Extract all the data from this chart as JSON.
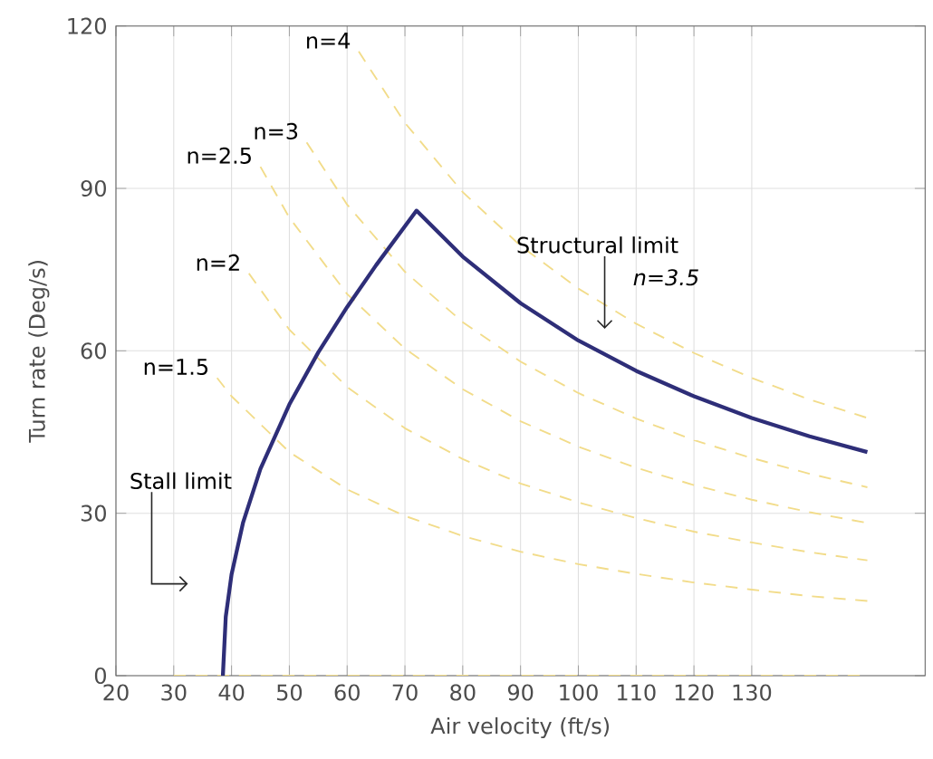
{
  "chart_data": {
    "type": "line",
    "xlabel": "Air velocity (ft/s)",
    "ylabel": "Turn rate (Deg/s)",
    "xlim": [
      20,
      160
    ],
    "ylim": [
      0,
      120
    ],
    "xticks": [
      20,
      30,
      40,
      50,
      60,
      70,
      80,
      90,
      100,
      110,
      120,
      130
    ],
    "yticks": [
      0,
      30,
      60,
      90,
      120
    ],
    "grid": true,
    "legend": false,
    "series": [
      {
        "color": "#f2dc8a",
        "line_style": "dashed",
        "x": [
          30,
          150
        ],
        "values": [
          0,
          0
        ]
      },
      {
        "name": "n=1.5",
        "color": "#f2dc8a",
        "line_style": "dashed",
        "x": [
          37.5,
          40,
          50,
          60,
          70,
          80,
          90,
          100,
          110,
          120,
          130,
          140,
          150
        ],
        "values": [
          55.0,
          51.6,
          41.3,
          34.4,
          29.5,
          25.8,
          22.9,
          20.6,
          18.8,
          17.2,
          15.9,
          14.7,
          13.8
        ]
      },
      {
        "name": "n=2",
        "color": "#f2dc8a",
        "line_style": "dashed",
        "x": [
          43,
          50,
          60,
          70,
          80,
          90,
          100,
          110,
          120,
          130,
          140,
          150
        ],
        "values": [
          74.3,
          63.9,
          53.3,
          45.7,
          40.0,
          35.5,
          32.0,
          29.1,
          26.6,
          24.6,
          22.8,
          21.3
        ]
      },
      {
        "name": "n=2.5",
        "color": "#f2dc8a",
        "line_style": "dashed",
        "x": [
          45,
          50,
          60,
          70,
          80,
          90,
          100,
          110,
          120,
          130,
          140,
          150
        ],
        "values": [
          94.0,
          84.6,
          70.5,
          60.4,
          52.9,
          47.0,
          42.3,
          38.4,
          35.2,
          32.5,
          30.2,
          28.2
        ]
      },
      {
        "name": "n=3",
        "color": "#f2dc8a",
        "line_style": "dashed",
        "x": [
          53,
          60,
          70,
          80,
          90,
          100,
          110,
          120,
          130,
          140,
          150
        ],
        "values": [
          98.5,
          87.0,
          74.6,
          65.3,
          58.0,
          52.2,
          47.5,
          43.5,
          40.2,
          37.3,
          34.8
        ]
      },
      {
        "name": "n=4",
        "color": "#f2dc8a",
        "line_style": "dashed",
        "x": [
          62,
          70,
          80,
          90,
          100,
          110,
          120,
          130,
          140,
          150
        ],
        "values": [
          115.3,
          102.1,
          89.3,
          79.4,
          71.5,
          65.0,
          59.6,
          55.0,
          51.0,
          47.6
        ]
      },
      {
        "color": "#2e2e78",
        "line_style": "solid",
        "x": [
          38.5,
          39,
          40,
          42,
          45,
          50,
          55,
          60,
          65,
          72,
          80,
          90,
          100,
          110,
          120,
          130,
          140,
          150
        ],
        "values": [
          0,
          10.9,
          18.7,
          28.3,
          38.2,
          50.1,
          59.7,
          68.1,
          75.8,
          85.9,
          77.4,
          68.8,
          61.9,
          56.3,
          51.6,
          47.6,
          44.2,
          41.3
        ]
      }
    ],
    "annotations": [
      "Structural limit",
      "*n=3.5*",
      "Stall limit"
    ]
  }
}
